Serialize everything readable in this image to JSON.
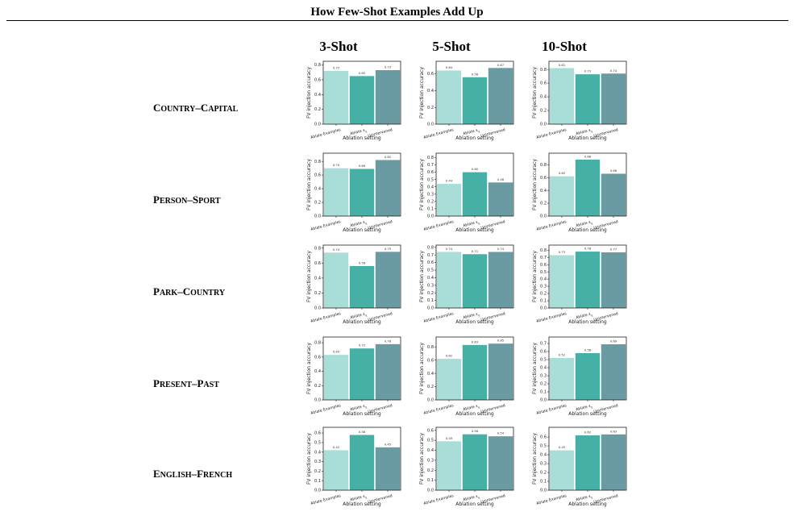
{
  "title": "How Few-Shot Examples Add Up",
  "columns": [
    "3-Shot",
    "5-Shot",
    "10-Shot"
  ],
  "rows": [
    "Country–Capital",
    "Person–Sport",
    "Park–Country",
    "Present–Past",
    "English–French"
  ],
  "axis": {
    "ylabel": "FV injection accuracy",
    "xlabel": "Ablation setting",
    "categories": [
      "Ablate Examples",
      "Ablate x_q",
      "Unintervened"
    ]
  },
  "colors": {
    "Ablate Examples": "#a8ddd8",
    "Ablate x_q": "#46b0a6",
    "Unintervened": "#6a9aa2"
  },
  "chart_data": [
    {
      "type": "bar",
      "row": "Country–Capital",
      "column": "3-Shot",
      "categories": [
        "Ablate Examples",
        "Ablate x_q",
        "Unintervened"
      ],
      "values": [
        0.72,
        0.65,
        0.73
      ],
      "labels": [
        "0.72",
        "0.65",
        "0.73"
      ],
      "ylim": [
        0,
        0.85
      ],
      "yticks": [
        "0.0",
        "0.2",
        "0.4",
        "0.6",
        "0.8"
      ],
      "xlabel": "Ablation setting",
      "ylabel": "FV injection accuracy"
    },
    {
      "type": "bar",
      "row": "Country–Capital",
      "column": "5-Shot",
      "categories": [
        "Ablate Examples",
        "Ablate x_q",
        "Unintervened"
      ],
      "values": [
        0.64,
        0.56,
        0.67
      ],
      "labels": [
        "0.64",
        "0.56",
        "0.67"
      ],
      "ylim": [
        0,
        0.75
      ],
      "yticks": [
        "0.0",
        "0.2",
        "0.4",
        "0.6"
      ],
      "xlabel": "Ablation setting",
      "ylabel": "FV injection accuracy"
    },
    {
      "type": "bar",
      "row": "Country–Capital",
      "column": "10-Shot",
      "categories": [
        "Ablate Examples",
        "Ablate x_q",
        "Unintervened"
      ],
      "values": [
        0.82,
        0.73,
        0.74
      ],
      "labels": [
        "0.82",
        "0.73",
        "0.74"
      ],
      "ylim": [
        0,
        0.92
      ],
      "yticks": [
        "0.0",
        "0.2",
        "0.4",
        "0.6",
        "0.8"
      ],
      "xlabel": "Ablation setting",
      "ylabel": "FV injection accuracy"
    },
    {
      "type": "bar",
      "row": "Person–Sport",
      "column": "3-Shot",
      "categories": [
        "Ablate Examples",
        "Ablate x_q",
        "Unintervened"
      ],
      "values": [
        0.7,
        0.69,
        0.82
      ],
      "labels": [
        "0.70",
        "0.69",
        "0.82"
      ],
      "ylim": [
        0,
        0.92
      ],
      "yticks": [
        "0.0",
        "0.2",
        "0.4",
        "0.6",
        "0.8"
      ],
      "xlabel": "Ablation setting",
      "ylabel": "FV injection accuracy"
    },
    {
      "type": "bar",
      "row": "Person–Sport",
      "column": "5-Shot",
      "categories": [
        "Ablate Examples",
        "Ablate x_q",
        "Unintervened"
      ],
      "values": [
        0.44,
        0.6,
        0.46
      ],
      "labels": [
        "0.44",
        "0.60",
        "0.46"
      ],
      "ylim": [
        0,
        0.86
      ],
      "yticks": [
        "0.0",
        "0.1",
        "0.2",
        "0.3",
        "0.4",
        "0.5",
        "0.6",
        "0.7",
        "0.8"
      ],
      "xlabel": "Ablation setting",
      "ylabel": "FV injection accuracy"
    },
    {
      "type": "bar",
      "row": "Person–Sport",
      "column": "10-Shot",
      "categories": [
        "Ablate Examples",
        "Ablate x_q",
        "Unintervened"
      ],
      "values": [
        0.62,
        0.88,
        0.66
      ],
      "labels": [
        "0.62",
        "0.88",
        "0.66"
      ],
      "ylim": [
        0,
        0.98
      ],
      "yticks": [
        "0.0",
        "0.2",
        "0.4",
        "0.6",
        "0.8"
      ],
      "xlabel": "Ablation setting",
      "ylabel": "FV injection accuracy"
    },
    {
      "type": "bar",
      "row": "Park–Country",
      "column": "3-Shot",
      "categories": [
        "Ablate Examples",
        "Ablate x_q",
        "Unintervened"
      ],
      "values": [
        0.74,
        0.56,
        0.75
      ],
      "labels": [
        "0.74",
        "0.56",
        "0.75"
      ],
      "ylim": [
        0,
        0.84
      ],
      "yticks": [
        "0.0",
        "0.2",
        "0.4",
        "0.6",
        "0.8"
      ],
      "xlabel": "Ablation setting",
      "ylabel": "FV injection accuracy"
    },
    {
      "type": "bar",
      "row": "Park–Country",
      "column": "5-Shot",
      "categories": [
        "Ablate Examples",
        "Ablate x_q",
        "Unintervened"
      ],
      "values": [
        0.74,
        0.71,
        0.74
      ],
      "labels": [
        "0.74",
        "0.71",
        "0.74"
      ],
      "ylim": [
        0,
        0.83
      ],
      "yticks": [
        "0.0",
        "0.1",
        "0.2",
        "0.3",
        "0.4",
        "0.5",
        "0.6",
        "0.7",
        "0.8"
      ],
      "xlabel": "Ablation setting",
      "ylabel": "FV injection accuracy"
    },
    {
      "type": "bar",
      "row": "Park–Country",
      "column": "10-Shot",
      "categories": [
        "Ablate Examples",
        "Ablate x_q",
        "Unintervened"
      ],
      "values": [
        0.73,
        0.78,
        0.77
      ],
      "labels": [
        "0.73",
        "0.78",
        "0.77"
      ],
      "ylim": [
        0,
        0.87
      ],
      "yticks": [
        "0.0",
        "0.1",
        "0.2",
        "0.3",
        "0.4",
        "0.5",
        "0.6",
        "0.7",
        "0.8"
      ],
      "xlabel": "Ablation setting",
      "ylabel": "FV injection accuracy"
    },
    {
      "type": "bar",
      "row": "Present–Past",
      "column": "3-Shot",
      "categories": [
        "Ablate Examples",
        "Ablate x_q",
        "Unintervened"
      ],
      "values": [
        0.63,
        0.72,
        0.78
      ],
      "labels": [
        "0.63",
        "0.72",
        "0.78"
      ],
      "ylim": [
        0,
        0.88
      ],
      "yticks": [
        "0.0",
        "0.2",
        "0.4",
        "0.6",
        "0.8"
      ],
      "xlabel": "Ablation setting",
      "ylabel": "FV injection accuracy"
    },
    {
      "type": "bar",
      "row": "Present–Past",
      "column": "5-Shot",
      "categories": [
        "Ablate Examples",
        "Ablate x_q",
        "Unintervened"
      ],
      "values": [
        0.62,
        0.83,
        0.85
      ],
      "labels": [
        "0.62",
        "0.83",
        "0.85"
      ],
      "ylim": [
        0,
        0.95
      ],
      "yticks": [
        "0.0",
        "0.2",
        "0.4",
        "0.6",
        "0.8"
      ],
      "xlabel": "Ablation setting",
      "ylabel": "FV injection accuracy"
    },
    {
      "type": "bar",
      "row": "Present–Past",
      "column": "10-Shot",
      "categories": [
        "Ablate Examples",
        "Ablate x_q",
        "Unintervened"
      ],
      "values": [
        0.52,
        0.58,
        0.69
      ],
      "labels": [
        "0.52",
        "0.58",
        "0.69"
      ],
      "ylim": [
        0,
        0.78
      ],
      "yticks": [
        "0.0",
        "0.1",
        "0.2",
        "0.3",
        "0.4",
        "0.5",
        "0.6",
        "0.7"
      ],
      "xlabel": "Ablation setting",
      "ylabel": "FV injection accuracy"
    },
    {
      "type": "bar",
      "row": "English–French",
      "column": "3-Shot",
      "categories": [
        "Ablate Examples",
        "Ablate x_q",
        "Unintervened"
      ],
      "values": [
        0.42,
        0.58,
        0.45
      ],
      "labels": [
        "0.42",
        "0.58",
        "0.45"
      ],
      "ylim": [
        0,
        0.66
      ],
      "yticks": [
        "0.0",
        "0.1",
        "0.2",
        "0.3",
        "0.4",
        "0.5",
        "0.6"
      ],
      "xlabel": "Ablation setting",
      "ylabel": "FV injection accuracy"
    },
    {
      "type": "bar",
      "row": "English–French",
      "column": "5-Shot",
      "categories": [
        "Ablate Examples",
        "Ablate x_q",
        "Unintervened"
      ],
      "values": [
        0.49,
        0.56,
        0.54
      ],
      "labels": [
        "0.49",
        "0.56",
        "0.54"
      ],
      "ylim": [
        0,
        0.63
      ],
      "yticks": [
        "0.0",
        "0.1",
        "0.2",
        "0.3",
        "0.4",
        "0.5",
        "0.6"
      ],
      "xlabel": "Ablation setting",
      "ylabel": "FV injection accuracy"
    },
    {
      "type": "bar",
      "row": "English–French",
      "column": "10-Shot",
      "categories": [
        "Ablate Examples",
        "Ablate x_q",
        "Unintervened"
      ],
      "values": [
        0.45,
        0.62,
        0.63
      ],
      "labels": [
        "0.45",
        "0.62",
        "0.63"
      ],
      "ylim": [
        0,
        0.71
      ],
      "yticks": [
        "0.0",
        "0.1",
        "0.2",
        "0.3",
        "0.4",
        "0.5",
        "0.6"
      ],
      "xlabel": "Ablation setting",
      "ylabel": "FV injection accuracy"
    }
  ]
}
